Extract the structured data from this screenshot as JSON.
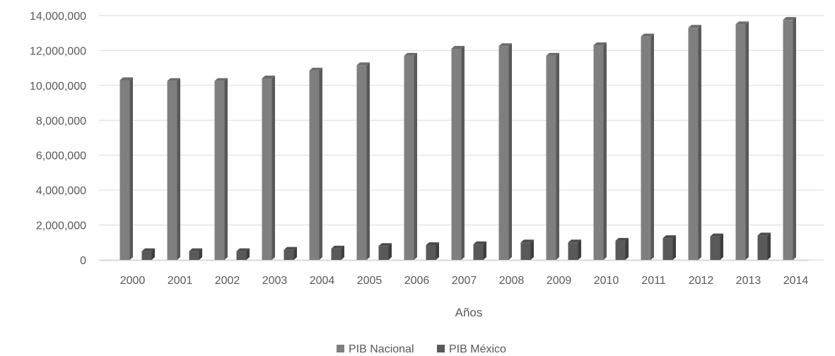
{
  "chart_data": {
    "type": "bar",
    "title": "",
    "xlabel": "Años",
    "ylabel": "",
    "categories": [
      "2000",
      "2001",
      "2002",
      "2003",
      "2004",
      "2005",
      "2006",
      "2007",
      "2008",
      "2009",
      "2010",
      "2011",
      "2012",
      "2013",
      "2014"
    ],
    "series": [
      {
        "name": "PIB Nacional",
        "color": "#7f7f7f",
        "values": [
          10300000,
          10250000,
          10250000,
          10400000,
          10850000,
          11150000,
          11700000,
          12100000,
          12250000,
          11700000,
          12300000,
          12800000,
          13300000,
          13500000,
          13750000
        ]
      },
      {
        "name": "PIB México",
        "color": "#595959",
        "values": [
          500000,
          500000,
          500000,
          580000,
          650000,
          800000,
          850000,
          900000,
          1000000,
          1000000,
          1100000,
          1250000,
          1350000,
          1400000,
          0
        ]
      }
    ],
    "yticks": [
      "0",
      "2,000,000",
      "4,000,000",
      "6,000,000",
      "8,000,000",
      "10,000,000",
      "12,000,000",
      "14,000,000"
    ],
    "ylim": [
      0,
      14000000
    ],
    "grid": true,
    "legend_position": "bottom"
  }
}
